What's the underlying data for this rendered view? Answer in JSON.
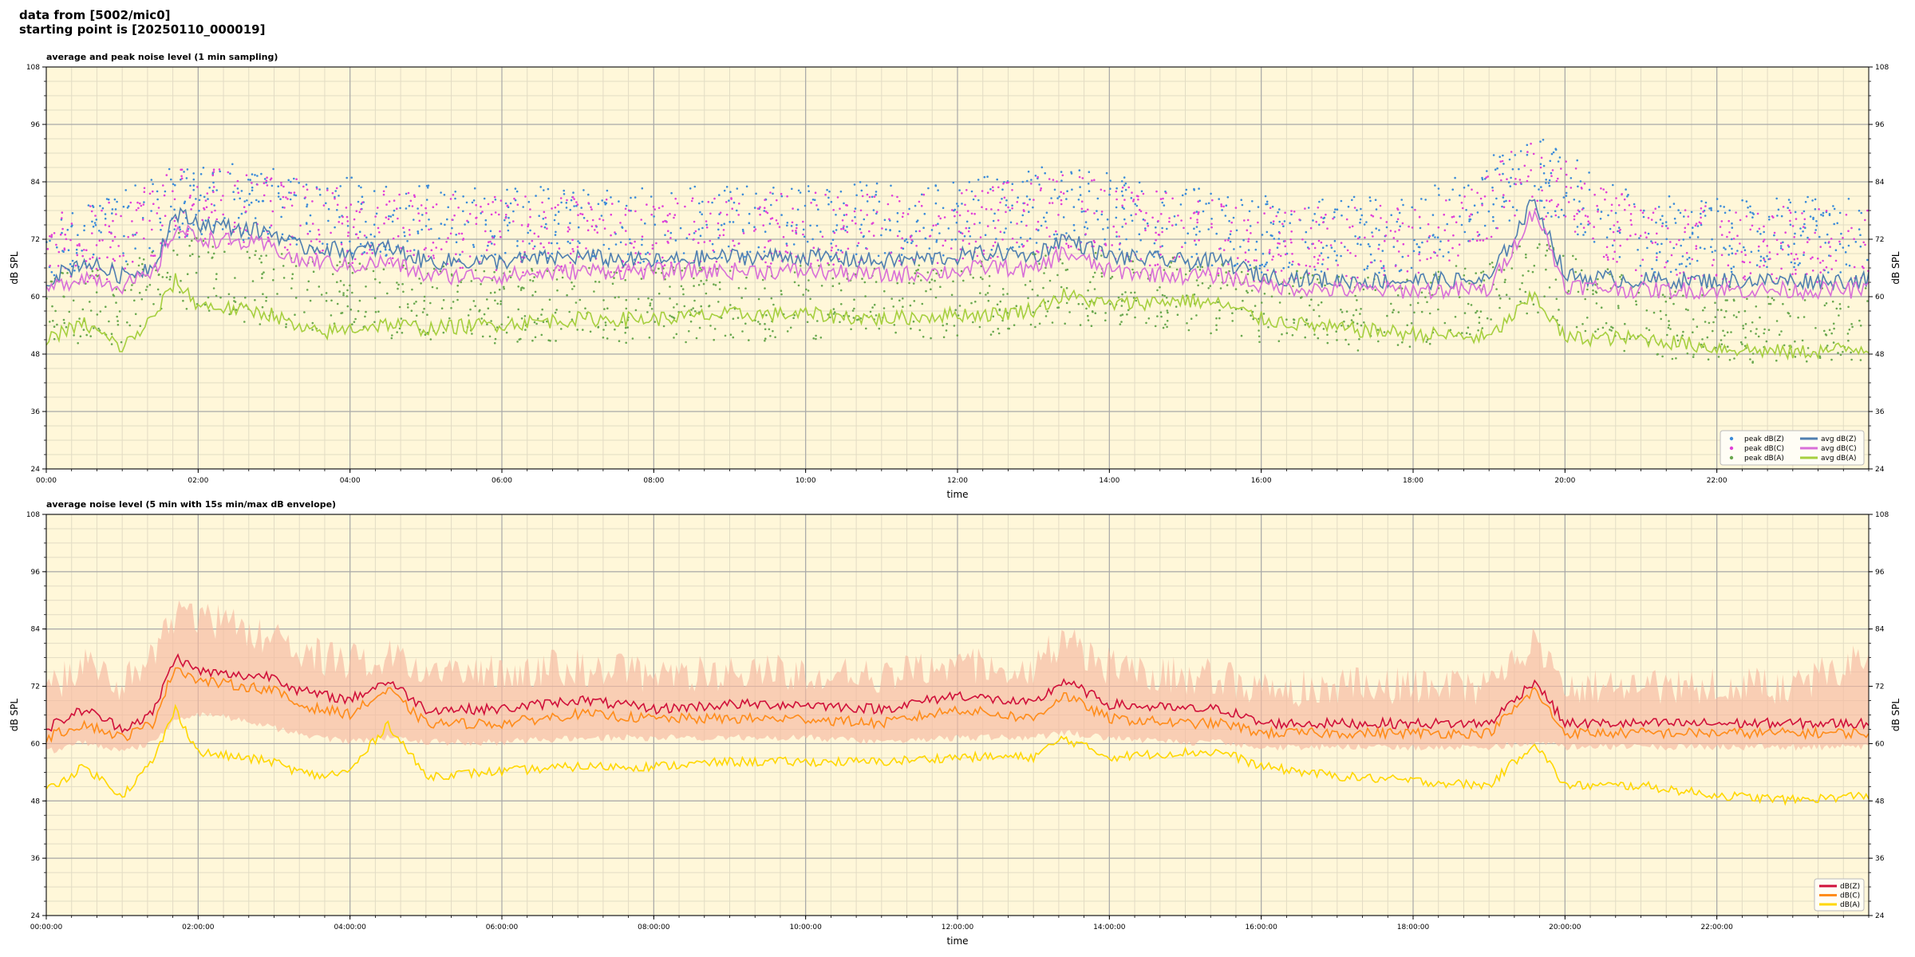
{
  "header": {
    "line1": "data from [5002/mic0]",
    "line2": "starting point is [20250110_000019]"
  },
  "colors": {
    "plot_bg": "#fff7d9",
    "grid_major": "#a8a8a8",
    "grid_minor": "#e2dcc4",
    "peak_z": "#3b8bd9",
    "peak_c": "#e040d8",
    "peak_a": "#6aa84f",
    "avg_z": "#4f7fb0",
    "avg_c": "#d86fd8",
    "avg_a": "#a6cf3f",
    "env": "#f6b8a0",
    "line_z": "#d0103a",
    "line_c": "#ff8c1a",
    "line_a": "#ffd700"
  },
  "chart_data": [
    {
      "type": "line",
      "title": "average and peak noise level (1 min sampling)",
      "xlabel": "time",
      "ylabel": "dB SPL",
      "ylim": [
        24,
        108
      ],
      "xlim_hours": [
        0,
        24
      ],
      "yticks": [
        24,
        36,
        48,
        60,
        72,
        84,
        96,
        108
      ],
      "xticks": [
        "00:00",
        "02:00",
        "04:00",
        "06:00",
        "08:00",
        "10:00",
        "12:00",
        "14:00",
        "16:00",
        "18:00",
        "20:00",
        "22:00"
      ],
      "grid": true,
      "legend_position": "bottom-right",
      "legend": [
        "peak dB(Z)",
        "peak dB(C)",
        "peak dB(A)",
        "avg dB(Z)",
        "avg dB(C)",
        "avg dB(A)"
      ],
      "series": [
        {
          "name": "avg dB(Z)",
          "style": "line",
          "x": [
            0,
            0.5,
            1,
            1.4,
            1.7,
            2,
            2.5,
            3,
            3.3,
            3.6,
            4,
            4.5,
            5,
            6,
            7,
            8,
            9,
            10,
            11,
            12,
            12.5,
            13,
            13.4,
            14,
            15,
            15.5,
            16,
            17,
            18,
            19,
            19.6,
            20,
            21,
            22,
            23,
            24
          ],
          "values": [
            63,
            67,
            64,
            66,
            77,
            75,
            74,
            73,
            70,
            70,
            69,
            70,
            67,
            67,
            68,
            67,
            68,
            68,
            67,
            68,
            69,
            68,
            72,
            68,
            67,
            67,
            64,
            63,
            63,
            63,
            80,
            64,
            63,
            63,
            63,
            63
          ]
        },
        {
          "name": "avg dB(C)",
          "style": "line",
          "x": [
            0,
            0.5,
            1,
            1.4,
            1.7,
            2,
            2.5,
            3,
            3.3,
            3.6,
            4,
            4.5,
            5,
            6,
            7,
            8,
            9,
            10,
            11,
            12,
            12.5,
            13,
            13.4,
            14,
            15,
            15.5,
            16,
            17,
            18,
            19,
            19.6,
            20,
            21,
            22,
            23,
            24
          ],
          "values": [
            61,
            64,
            62,
            64,
            74,
            72,
            71,
            70,
            67,
            67,
            66,
            67,
            64,
            64,
            65,
            65,
            65,
            65,
            64,
            65,
            66,
            65,
            69,
            65,
            64,
            64,
            62,
            61,
            61,
            61,
            78,
            62,
            61,
            61,
            61,
            61
          ]
        },
        {
          "name": "avg dB(A)",
          "style": "line",
          "x": [
            0,
            0.5,
            1,
            1.4,
            1.7,
            2,
            2.5,
            3,
            3.3,
            3.6,
            4,
            4.5,
            5,
            6,
            7,
            8,
            9,
            10,
            11,
            12,
            12.5,
            13,
            13.4,
            14,
            15,
            15.5,
            16,
            17,
            18,
            19,
            19.6,
            20,
            21,
            22,
            23,
            24
          ],
          "values": [
            51,
            54,
            49,
            55,
            63,
            58,
            57,
            56,
            53,
            52,
            53,
            54,
            53,
            54,
            55,
            55,
            56,
            56,
            55,
            56,
            56,
            57,
            60,
            58,
            59,
            58,
            55,
            53,
            52,
            51,
            60,
            51,
            51,
            49,
            48,
            49
          ]
        },
        {
          "name": "peak dB(Z)",
          "style": "points",
          "x": [
            0,
            1,
            1.7,
            2.5,
            3.5,
            4.5,
            6,
            8,
            10,
            12,
            13.4,
            15,
            16,
            18,
            19.6,
            21,
            22.5,
            24
          ],
          "values": [
            72,
            74,
            80,
            80,
            78,
            76,
            75,
            75,
            76,
            76,
            80,
            75,
            73,
            73,
            86,
            73,
            73,
            73
          ]
        },
        {
          "name": "peak dB(C)",
          "style": "points",
          "x": [
            0,
            1,
            1.7,
            2.5,
            3.5,
            4.5,
            6,
            8,
            10,
            12,
            13.4,
            15,
            16,
            18,
            19.6,
            21,
            22.5,
            24
          ],
          "values": [
            70,
            72,
            79,
            79,
            76,
            74,
            73,
            73,
            74,
            74,
            78,
            73,
            71,
            71,
            85,
            71,
            71,
            71
          ]
        },
        {
          "name": "peak dB(A)",
          "style": "points",
          "x": [
            0,
            1,
            1.7,
            2.5,
            3.5,
            4.5,
            6,
            8,
            10,
            12,
            13.4,
            15,
            16,
            18,
            19.6,
            21,
            22.5,
            24
          ],
          "values": [
            58,
            58,
            66,
            63,
            60,
            59,
            58,
            58,
            59,
            59,
            62,
            61,
            58,
            56,
            64,
            55,
            54,
            54
          ]
        }
      ]
    },
    {
      "type": "line",
      "title": "average noise level (5 min with 15s min/max dB envelope)",
      "xlabel": "time",
      "ylabel": "dB SPL",
      "ylim": [
        24,
        108
      ],
      "xlim_hours": [
        0,
        24
      ],
      "yticks": [
        24,
        36,
        48,
        60,
        72,
        84,
        96,
        108
      ],
      "xticks": [
        "00:00:00",
        "02:00:00",
        "04:00:00",
        "06:00:00",
        "08:00:00",
        "10:00:00",
        "12:00:00",
        "14:00:00",
        "16:00:00",
        "18:00:00",
        "20:00:00",
        "22:00:00"
      ],
      "grid": true,
      "legend_position": "bottom-right",
      "legend": [
        "dB(Z)",
        "dB(C)",
        "dB(A)"
      ],
      "series": [
        {
          "name": "dB(Z)",
          "style": "line",
          "x": [
            0,
            0.5,
            1,
            1.4,
            1.7,
            2,
            2.5,
            3,
            3.3,
            3.6,
            4,
            4.5,
            5,
            6,
            7,
            8,
            9,
            10,
            11,
            12,
            12.5,
            13,
            13.4,
            14,
            15,
            15.5,
            16,
            17,
            18,
            19,
            19.6,
            20,
            21,
            22,
            23,
            24
          ],
          "values": [
            63,
            67,
            63,
            66,
            78,
            75,
            74,
            74,
            71,
            70,
            69,
            73,
            67,
            67,
            69,
            67,
            68,
            68,
            67,
            70,
            69,
            68,
            73,
            68,
            67,
            67,
            64,
            64,
            64,
            64,
            73,
            64,
            64,
            64,
            64,
            64
          ]
        },
        {
          "name": "dB(C)",
          "style": "line",
          "x": [
            0,
            0.5,
            1,
            1.4,
            1.7,
            2,
            2.5,
            3,
            3.3,
            3.6,
            4,
            4.5,
            5,
            6,
            7,
            8,
            9,
            10,
            11,
            12,
            12.5,
            13,
            13.4,
            14,
            15,
            15.5,
            16,
            17,
            18,
            19,
            19.6,
            20,
            21,
            22,
            23,
            24
          ],
          "values": [
            61,
            64,
            61,
            64,
            76,
            73,
            72,
            71,
            68,
            67,
            66,
            71,
            64,
            64,
            66,
            65,
            65,
            65,
            64,
            67,
            66,
            65,
            70,
            65,
            64,
            64,
            62,
            62,
            62,
            62,
            71,
            62,
            62,
            62,
            62,
            62
          ]
        },
        {
          "name": "dB(A)",
          "style": "line",
          "x": [
            0,
            0.5,
            1,
            1.4,
            1.7,
            2,
            2.5,
            3,
            3.3,
            3.6,
            4,
            4.5,
            5,
            6,
            7,
            8,
            9,
            10,
            11,
            12,
            12.5,
            13,
            13.4,
            14,
            15,
            15.5,
            16,
            17,
            18,
            19,
            19.6,
            20,
            21,
            22,
            23,
            24
          ],
          "values": [
            50,
            55,
            49,
            56,
            67,
            58,
            57,
            56,
            54,
            53,
            54,
            64,
            53,
            54,
            55,
            55,
            56,
            56,
            56,
            57,
            57,
            57,
            61,
            57,
            58,
            58,
            55,
            53,
            52,
            51,
            60,
            51,
            51,
            49,
            48,
            49
          ]
        },
        {
          "name": "envelope max",
          "style": "band-upper",
          "x": [
            0,
            0.5,
            1,
            1.4,
            1.7,
            2,
            2.5,
            3,
            3.3,
            3.6,
            4,
            4.5,
            5,
            6,
            7,
            8,
            9,
            10,
            11,
            12,
            12.5,
            13,
            13.4,
            14,
            15,
            15.5,
            16,
            17,
            18,
            19,
            19.6,
            20,
            21,
            22,
            23,
            24
          ],
          "values": [
            76,
            80,
            76,
            82,
            90,
            90,
            89,
            86,
            84,
            82,
            81,
            82,
            80,
            79,
            80,
            78,
            79,
            79,
            78,
            80,
            80,
            80,
            86,
            80,
            78,
            78,
            75,
            76,
            76,
            76,
            85,
            76,
            76,
            76,
            76,
            82
          ]
        },
        {
          "name": "envelope min",
          "style": "band-lower",
          "x": [
            0,
            0.5,
            1,
            1.4,
            1.7,
            2,
            2.5,
            3,
            3.3,
            3.6,
            4,
            4.5,
            5,
            6,
            7,
            8,
            9,
            10,
            11,
            12,
            12.5,
            13,
            13.4,
            14,
            15,
            15.5,
            16,
            17,
            18,
            19,
            19.6,
            20,
            21,
            22,
            23,
            24
          ],
          "values": [
            59,
            61,
            59,
            61,
            66,
            67,
            66,
            64,
            63,
            62,
            61,
            62,
            61,
            61,
            62,
            62,
            62,
            62,
            61,
            62,
            62,
            62,
            63,
            62,
            61,
            61,
            60,
            60,
            60,
            60,
            61,
            60,
            60,
            60,
            60,
            60
          ]
        }
      ]
    }
  ]
}
